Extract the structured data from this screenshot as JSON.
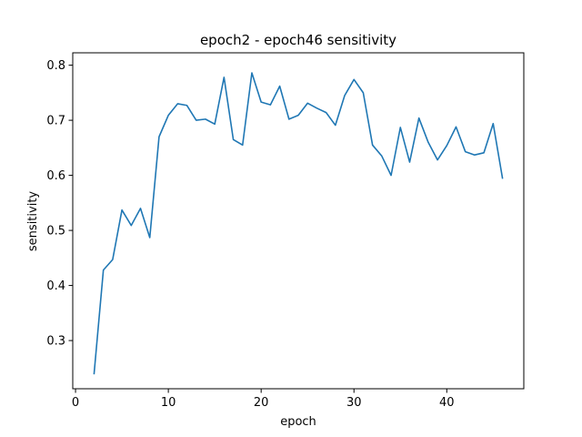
{
  "chart_data": {
    "type": "line",
    "title": "epoch2 - epoch46 sensitivity",
    "xlabel": "epoch",
    "ylabel": "sensitivity",
    "xlim": [
      -0.3,
      48.3
    ],
    "ylim": [
      0.2125,
      0.8225
    ],
    "xticks": [
      0,
      10,
      20,
      30,
      40
    ],
    "xtick_labels": [
      "0",
      "10",
      "20",
      "30",
      "40"
    ],
    "yticks": [
      0.3,
      0.4,
      0.5,
      0.6,
      0.7,
      0.8
    ],
    "ytick_labels": [
      "0.3",
      "0.4",
      "0.5",
      "0.6",
      "0.7",
      "0.8"
    ],
    "grid": false,
    "line_color": "#1f77b4",
    "series": [
      {
        "x": [
          2,
          3,
          4,
          5,
          6,
          7,
          8,
          9,
          10,
          11,
          12,
          13,
          14,
          15,
          16,
          17,
          18,
          19,
          20,
          21,
          22,
          23,
          24,
          25,
          26,
          27,
          28,
          29,
          30,
          31,
          32,
          33,
          34,
          35,
          36,
          37,
          38,
          39,
          40,
          41,
          42,
          43,
          44,
          45,
          46
        ],
        "values": [
          0.24,
          0.428,
          0.447,
          0.537,
          0.509,
          0.54,
          0.487,
          0.67,
          0.709,
          0.73,
          0.727,
          0.7,
          0.702,
          0.693,
          0.778,
          0.665,
          0.655,
          0.786,
          0.733,
          0.728,
          0.762,
          0.702,
          0.709,
          0.731,
          0.722,
          0.714,
          0.691,
          0.745,
          0.774,
          0.75,
          0.655,
          0.635,
          0.6,
          0.687,
          0.624,
          0.704,
          0.66,
          0.628,
          0.654,
          0.688,
          0.643,
          0.637,
          0.641,
          0.694,
          0.595
        ]
      }
    ]
  }
}
